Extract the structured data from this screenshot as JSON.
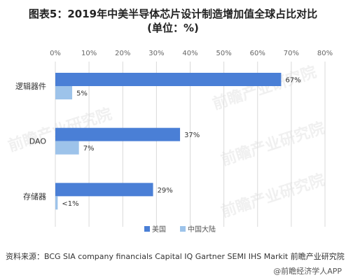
{
  "title_line1": "图表5：2019年中美半导体芯片设计制造增加值全球占比对比",
  "title_line2": "(单位：%)",
  "source": "资料来源：BCG SIA company financials Capital IQ Gartner SEMI IHS Markit 前瞻产业研究院",
  "credit": "@前瞻经济学人APP",
  "watermark": "前瞻产业研究院",
  "colors": {
    "us": "#4a7fd6",
    "cn": "#9dc3ea",
    "grid": "#d9d9d9",
    "axis_text": "#666666"
  },
  "chart_data": {
    "type": "bar",
    "orientation": "horizontal",
    "categories": [
      "逻辑器件",
      "DAO",
      "存储器"
    ],
    "xlim": [
      0,
      80
    ],
    "x_ticks": [
      "0%",
      "10%",
      "20%",
      "30%",
      "40%",
      "50%",
      "60%",
      "70%",
      "80%"
    ],
    "grid": true,
    "legend_position": "bottom",
    "series": [
      {
        "name": "美国",
        "values": [
          67,
          37,
          29
        ],
        "labels": [
          "67%",
          "37%",
          "29%"
        ]
      },
      {
        "name": "中国大陆",
        "values": [
          5,
          7,
          0.7
        ],
        "labels": [
          "5%",
          "7%",
          "<1%"
        ]
      }
    ]
  }
}
